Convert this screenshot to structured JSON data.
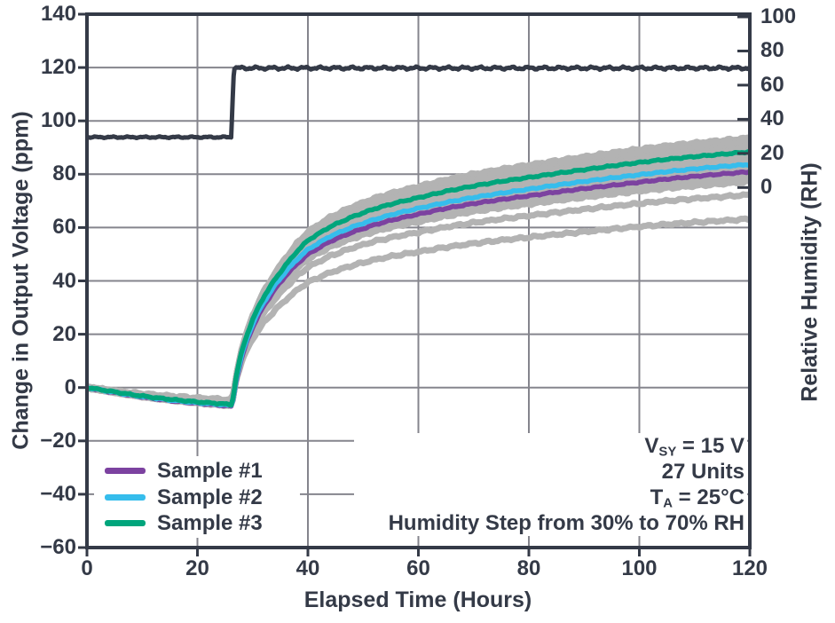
{
  "chart_data": {
    "type": "line",
    "title": "",
    "xlabel": "Elapsed Time (Hours)",
    "ylabel_left": "Change in Output Voltage (ppm)",
    "ylabel_right": "Relative Humidity (RH)",
    "xlim": [
      0,
      120
    ],
    "ylim_left": [
      -60,
      140
    ],
    "x_ticks": [
      0,
      20,
      40,
      60,
      80,
      100,
      120
    ],
    "y_ticks_left": [
      140,
      120,
      100,
      80,
      60,
      40,
      20,
      0,
      -20,
      -40,
      -60
    ],
    "y_ticks_right": [
      100,
      80,
      60,
      40,
      20,
      0
    ],
    "right_axis_map": {
      "ppm_at_rh0": 75,
      "ppm_per_rh": 0.64
    },
    "grid": true,
    "colors": {
      "axis": "#343A47",
      "grid": "#85858D",
      "gray_units": "#B3B3B3",
      "humidity": "#343A47",
      "sample1": "#7C42A0",
      "sample2": "#36BDEC",
      "sample3": "#00A57C",
      "background": "#FFFFFF"
    },
    "humidity_series": {
      "name": "Relative Humidity",
      "units": "% RH",
      "step_time_hours": 26,
      "points": [
        [
          0,
          29.5
        ],
        [
          26.1,
          29.5
        ],
        [
          26.6,
          70
        ],
        [
          120,
          70
        ]
      ],
      "noise_rh_pre_step": 0.5,
      "noise_rh_post_step": 1.0
    },
    "samples": [
      {
        "name": "Sample #1",
        "color": "#7C42A0",
        "points": [
          [
            0,
            0
          ],
          [
            4,
            -1.5
          ],
          [
            8,
            -2.9
          ],
          [
            12,
            -4.1
          ],
          [
            16,
            -5.1
          ],
          [
            20,
            -5.9
          ],
          [
            24,
            -6.6
          ],
          [
            26.1,
            -7
          ],
          [
            26.5,
            -4.4
          ],
          [
            27,
            2.4
          ],
          [
            28,
            11
          ],
          [
            29,
            17.5
          ],
          [
            30,
            22.6
          ],
          [
            31,
            26.8
          ],
          [
            32,
            30.6
          ],
          [
            34,
            36.8
          ],
          [
            36,
            42
          ],
          [
            38,
            46.3
          ],
          [
            40,
            50
          ],
          [
            44,
            54.8
          ],
          [
            48,
            58.2
          ],
          [
            52,
            61
          ],
          [
            56,
            63.2
          ],
          [
            60,
            65
          ],
          [
            65,
            67.2
          ],
          [
            70,
            69
          ],
          [
            75,
            70.5
          ],
          [
            80,
            71.9
          ],
          [
            85,
            73.3
          ],
          [
            90,
            74.6
          ],
          [
            95,
            75.8
          ],
          [
            100,
            77
          ],
          [
            105,
            78.2
          ],
          [
            110,
            79.2
          ],
          [
            115,
            80.1
          ],
          [
            120,
            80.9
          ]
        ]
      },
      {
        "name": "Sample #2",
        "color": "#36BDEC",
        "points": [
          [
            0,
            0
          ],
          [
            4,
            -1.4
          ],
          [
            8,
            -2.8
          ],
          [
            12,
            -3.9
          ],
          [
            16,
            -4.9
          ],
          [
            20,
            -5.7
          ],
          [
            24,
            -6.3
          ],
          [
            26.1,
            -6.7
          ],
          [
            26.5,
            -4
          ],
          [
            27,
            3
          ],
          [
            28,
            12
          ],
          [
            29,
            18.5
          ],
          [
            30,
            23.8
          ],
          [
            31,
            28.2
          ],
          [
            32,
            32
          ],
          [
            34,
            38.3
          ],
          [
            36,
            43.5
          ],
          [
            38,
            48
          ],
          [
            40,
            51.8
          ],
          [
            44,
            56.7
          ],
          [
            48,
            60.2
          ],
          [
            52,
            63
          ],
          [
            56,
            65.3
          ],
          [
            60,
            67.2
          ],
          [
            65,
            69.4
          ],
          [
            70,
            71.3
          ],
          [
            75,
            72.9
          ],
          [
            80,
            74.4
          ],
          [
            85,
            75.9
          ],
          [
            90,
            77.3
          ],
          [
            95,
            78.6
          ],
          [
            100,
            79.8
          ],
          [
            105,
            81
          ],
          [
            110,
            82
          ],
          [
            115,
            82.9
          ],
          [
            120,
            83.7
          ]
        ]
      },
      {
        "name": "Sample #3",
        "color": "#00A57C",
        "points": [
          [
            0,
            0
          ],
          [
            4,
            -1.3
          ],
          [
            8,
            -2.6
          ],
          [
            12,
            -3.7
          ],
          [
            16,
            -4.6
          ],
          [
            20,
            -5.4
          ],
          [
            24,
            -6
          ],
          [
            26.1,
            -6.4
          ],
          [
            26.5,
            -3.5
          ],
          [
            27,
            4
          ],
          [
            28,
            13.5
          ],
          [
            29,
            20
          ],
          [
            30,
            25.5
          ],
          [
            31,
            30
          ],
          [
            32,
            34
          ],
          [
            34,
            40.5
          ],
          [
            36,
            46
          ],
          [
            38,
            51
          ],
          [
            40,
            55.2
          ],
          [
            44,
            60.3
          ],
          [
            48,
            64
          ],
          [
            52,
            67
          ],
          [
            56,
            69.3
          ],
          [
            60,
            71.2
          ],
          [
            65,
            73.6
          ],
          [
            70,
            75.6
          ],
          [
            75,
            77.3
          ],
          [
            80,
            78.8
          ],
          [
            85,
            80.3
          ],
          [
            90,
            81.7
          ],
          [
            95,
            83.1
          ],
          [
            100,
            84.4
          ],
          [
            105,
            85.6
          ],
          [
            110,
            86.6
          ],
          [
            115,
            87.5
          ],
          [
            120,
            88.4
          ]
        ]
      }
    ],
    "unit_traces": {
      "total_units": 27,
      "gray_trace_count": 24,
      "base_end_ppm": 88.4,
      "end_values_ppm": [
        93.6,
        92.9,
        92.2,
        91.5,
        90.8,
        90.1,
        89.4,
        88.7,
        88.0,
        87.3,
        86.6,
        85.9,
        85.2,
        84.5,
        83.8,
        83.1,
        82.3,
        81.5,
        80.7,
        79.9,
        79.1,
        77.2,
        72.3,
        63.2
      ],
      "noise_ppm": 0.5
    },
    "legend": {
      "position": "lower-left",
      "items": [
        {
          "label": "Sample #1",
          "color": "#7C42A0"
        },
        {
          "label": "Sample #2",
          "color": "#36BDEC"
        },
        {
          "label": "Sample #3",
          "color": "#00A57C"
        }
      ]
    },
    "annotation": {
      "position": "lower-right",
      "lines": [
        {
          "segments": [
            {
              "text": "V"
            },
            {
              "text": "SY",
              "sub": true
            },
            {
              "text": " = 15 V"
            }
          ]
        },
        {
          "segments": [
            {
              "text": "27 Units"
            }
          ]
        },
        {
          "segments": [
            {
              "text": "T"
            },
            {
              "text": "A",
              "sub": true
            },
            {
              "text": " = 25°C"
            }
          ]
        },
        {
          "segments": [
            {
              "text": "Humidity Step from 30% to 70% RH"
            }
          ]
        }
      ]
    }
  }
}
